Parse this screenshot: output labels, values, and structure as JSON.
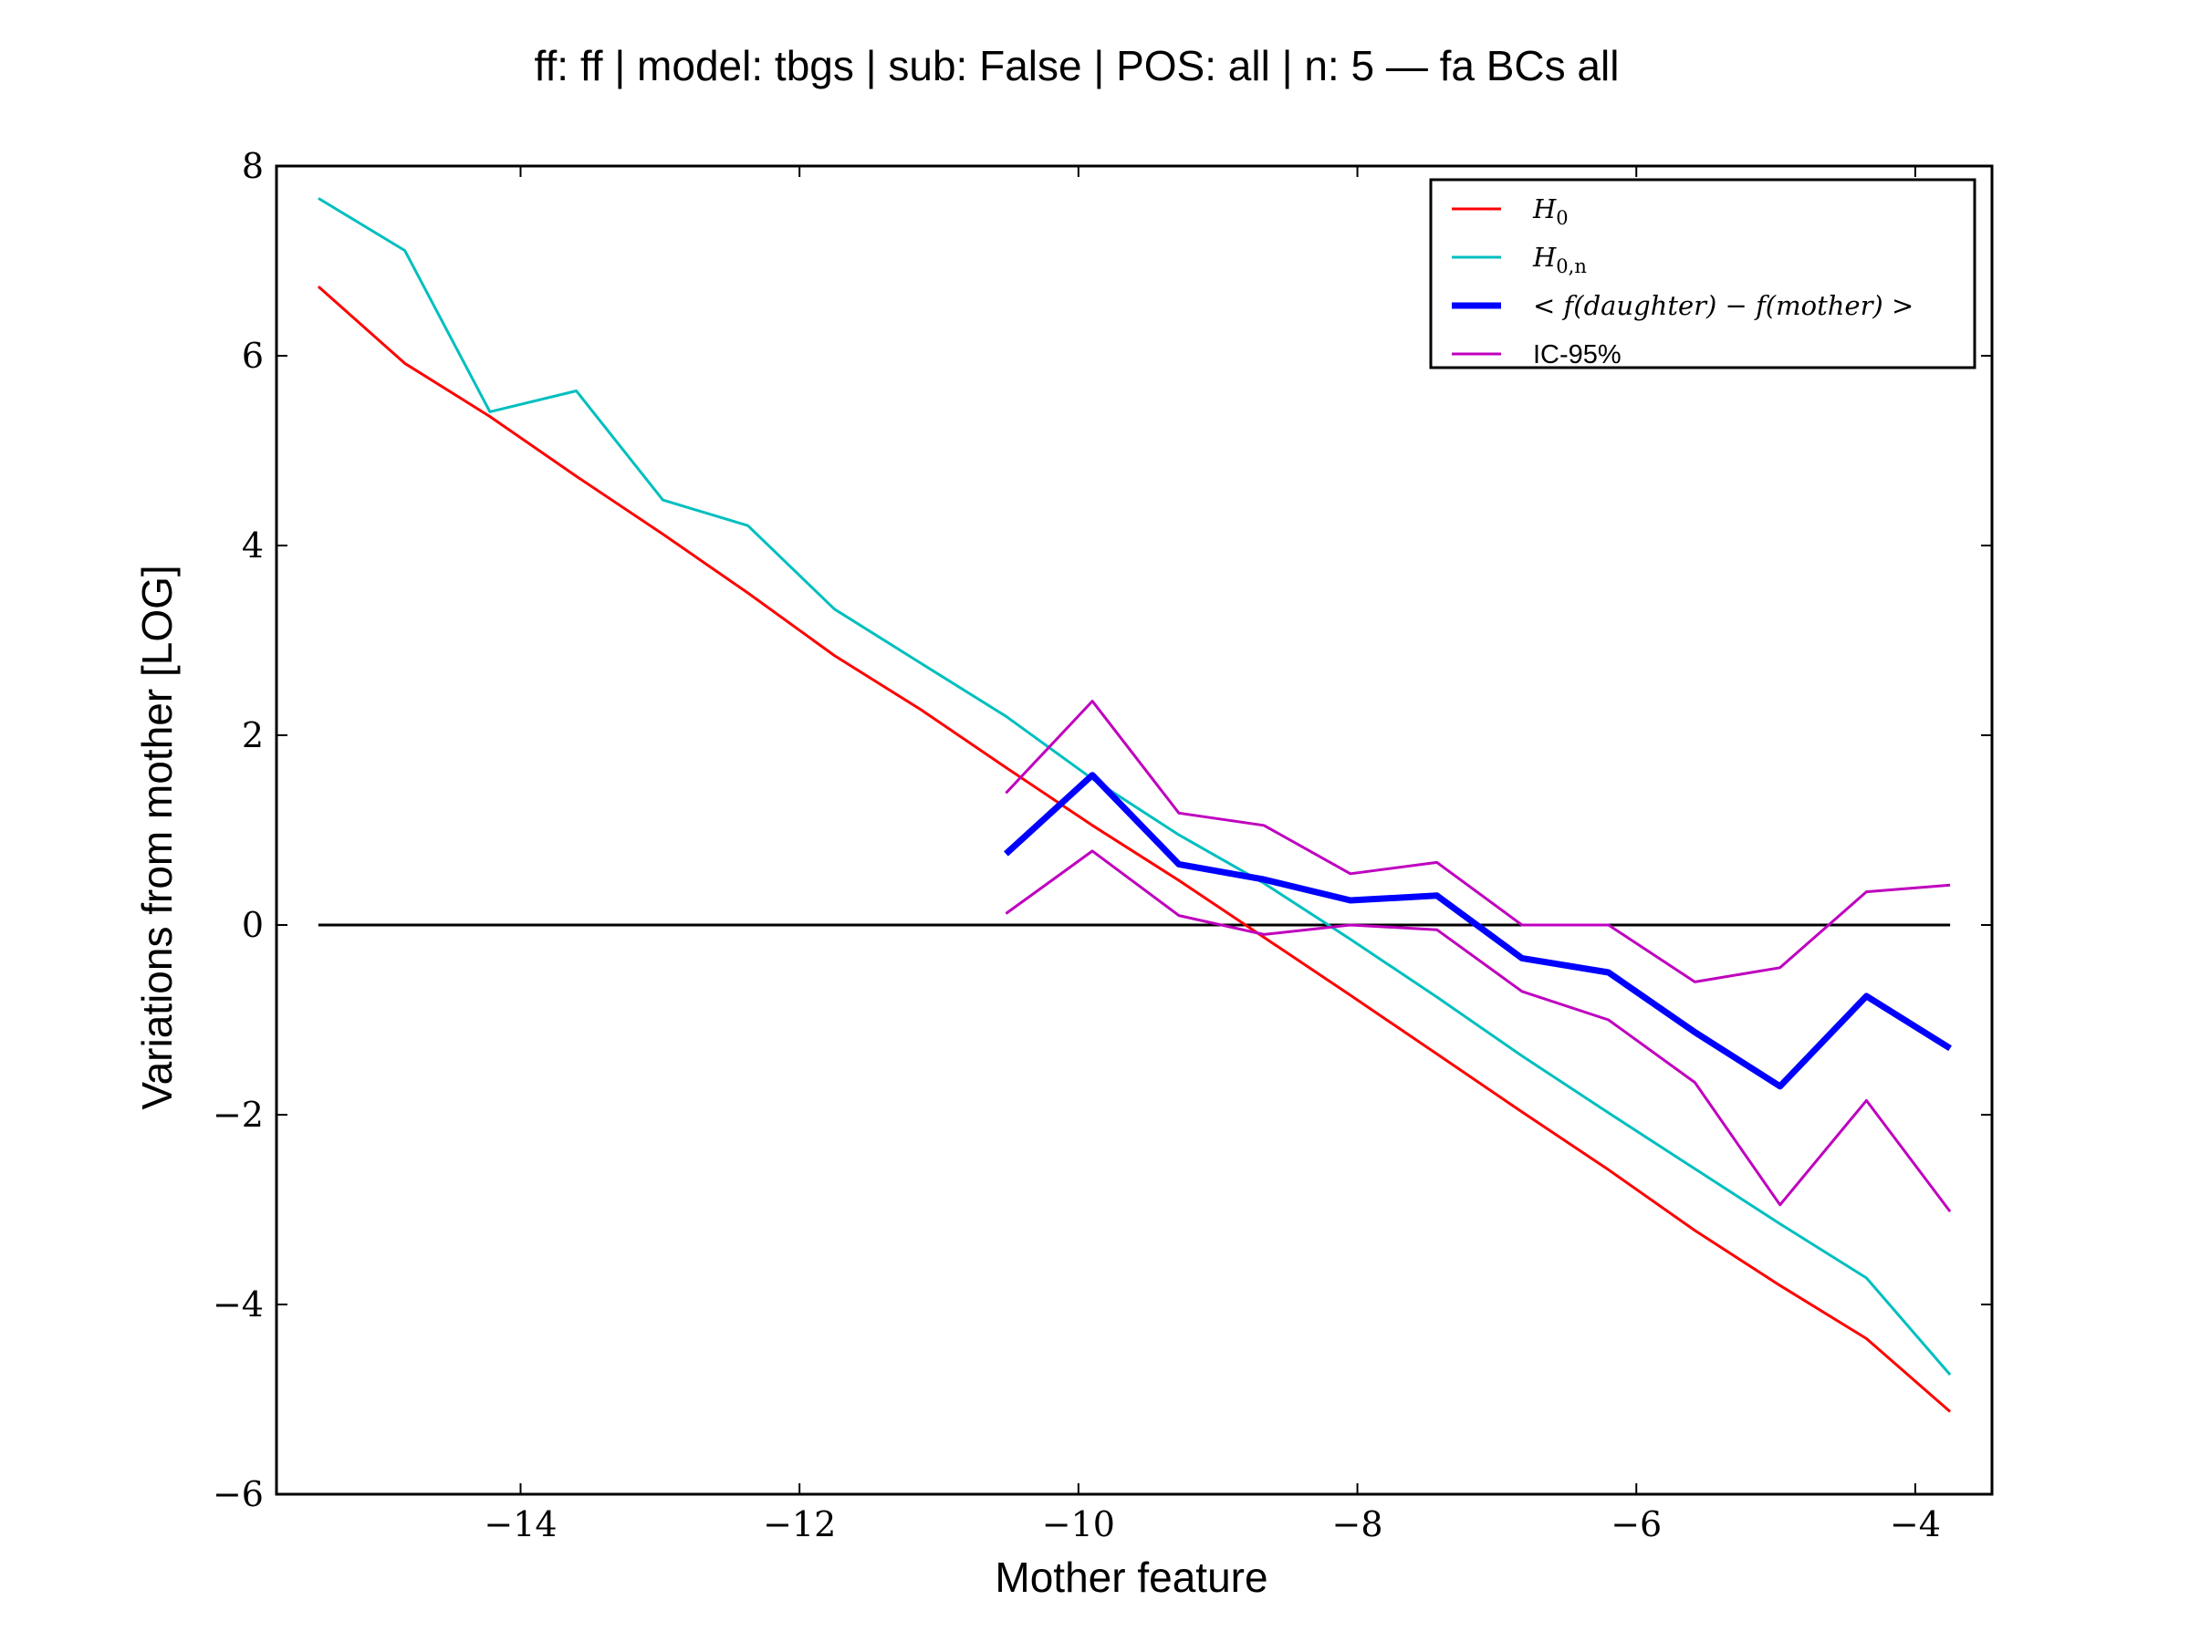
{
  "chart_data": {
    "type": "line",
    "title": "ff: ff | model: tbgs | sub: False | POS: all | n: 5 — fa BCs all",
    "xlabel": "Mother feature",
    "ylabel": "Variations from mother [LOG]",
    "xlim": [
      -15.75,
      -3.45
    ],
    "ylim": [
      -6,
      8
    ],
    "xticks": [
      -14,
      -12,
      -10,
      -8,
      -6,
      -4
    ],
    "xtick_labels": [
      "−14",
      "−12",
      "−10",
      "−8",
      "−6",
      "−4"
    ],
    "yticks": [
      -6,
      -4,
      -2,
      0,
      2,
      4,
      6,
      8
    ],
    "ytick_labels": [
      "−6",
      "−4",
      "−2",
      "0",
      "2",
      "4",
      "6",
      "8"
    ],
    "grid": false,
    "legend_position": "top-right",
    "reference_line": {
      "y": 0,
      "x_range": [
        -15.45,
        -3.75
      ],
      "color": "#000000"
    },
    "series": [
      {
        "name": "H0",
        "legend_main": "H",
        "legend_sub": "0",
        "color": "#ff0000",
        "width": 3,
        "x": [
          -15.45,
          -14.83,
          -14.22,
          -13.6,
          -12.98,
          -12.37,
          -11.75,
          -11.13,
          -10.52,
          -9.9,
          -9.28,
          -8.67,
          -8.05,
          -7.43,
          -6.82,
          -6.2,
          -5.58,
          -4.97,
          -4.35,
          -3.75
        ],
        "values": [
          6.73,
          5.92,
          5.36,
          4.73,
          4.12,
          3.5,
          2.84,
          2.27,
          1.66,
          1.05,
          0.47,
          -0.13,
          -0.74,
          -1.36,
          -1.97,
          -2.58,
          -3.22,
          -3.8,
          -4.36,
          -5.13
        ]
      },
      {
        "name": "H0,n",
        "legend_main": "H",
        "legend_sub": "0,n",
        "color": "#00bfbf",
        "width": 3,
        "x": [
          -15.45,
          -14.83,
          -14.22,
          -13.6,
          -12.98,
          -12.37,
          -11.75,
          -11.13,
          -10.52,
          -9.9,
          -9.28,
          -8.67,
          -8.05,
          -7.43,
          -6.82,
          -6.2,
          -5.58,
          -4.97,
          -4.35,
          -3.75
        ],
        "values": [
          7.66,
          7.11,
          5.41,
          5.63,
          4.48,
          4.21,
          3.33,
          2.76,
          2.2,
          1.54,
          0.95,
          0.44,
          -0.15,
          -0.76,
          -1.38,
          -1.98,
          -2.57,
          -3.15,
          -3.72,
          -4.74
        ]
      },
      {
        "name": "< f(daughter) − f(mother) >",
        "legend_label": "< f(daughter) − f(mother) >",
        "color": "#0000ff",
        "width": 7,
        "x": [
          -10.52,
          -9.9,
          -9.28,
          -8.67,
          -8.05,
          -7.43,
          -6.82,
          -6.2,
          -5.58,
          -4.97,
          -4.35,
          -3.75
        ],
        "values": [
          0.75,
          1.58,
          0.64,
          0.48,
          0.26,
          0.31,
          -0.35,
          -0.5,
          -1.13,
          -1.7,
          -0.75,
          -1.3
        ]
      },
      {
        "name": "IC-95%",
        "legend_label": "IC-95%",
        "color": "#bf00bf",
        "width": 3,
        "x": [
          -10.52,
          -9.9,
          -9.28,
          -8.67,
          -8.05,
          -7.43,
          -6.82,
          -6.2,
          -5.58,
          -4.97,
          -4.35,
          -3.75
        ],
        "values": [
          1.39,
          2.36,
          1.18,
          1.05,
          0.54,
          0.66,
          0.0,
          0.0,
          -0.6,
          -0.45,
          0.35,
          0.42
        ]
      },
      {
        "name": "IC-95% lower",
        "in_legend": false,
        "color": "#bf00bf",
        "width": 3,
        "x": [
          -10.52,
          -9.9,
          -9.28,
          -8.67,
          -8.05,
          -7.43,
          -6.82,
          -6.2,
          -5.58,
          -4.97,
          -4.35,
          -3.75
        ],
        "values": [
          0.12,
          0.78,
          0.1,
          -0.1,
          0.0,
          -0.05,
          -0.7,
          -1.0,
          -1.66,
          -2.95,
          -1.85,
          -3.02
        ]
      }
    ]
  }
}
